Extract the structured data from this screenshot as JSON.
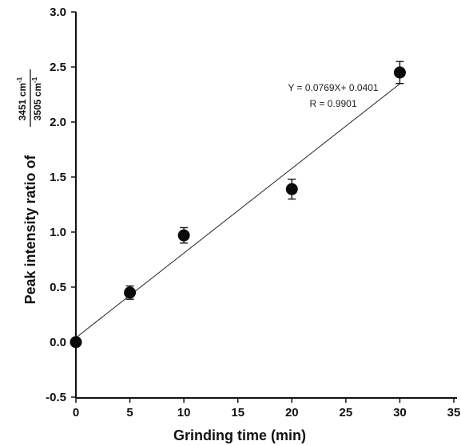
{
  "chart_data": {
    "type": "scatter",
    "xlabel": "Grinding time (min)",
    "ylabel": {
      "prefix": "Peak intensity ratio of",
      "numerator": "3451 cm",
      "denominator": "3505 cm",
      "unit_exponent": "-1"
    },
    "xlim": [
      -0.5,
      35
    ],
    "ylim": [
      -0.5,
      3.0
    ],
    "x_ticks": [
      0,
      5,
      10,
      15,
      20,
      25,
      30,
      35
    ],
    "x_tick_labels": [
      "0",
      "5",
      "10",
      "15",
      "20",
      "25",
      "30",
      "35"
    ],
    "y_ticks": [
      -0.5,
      0.0,
      0.5,
      1.0,
      1.5,
      2.0,
      2.5,
      3.0
    ],
    "y_tick_labels": [
      "-0.5",
      "0.0",
      "0.5",
      "1.0",
      "1.5",
      "2.0",
      "2.5",
      "3.0"
    ],
    "grid": false,
    "series": [
      {
        "x": [
          0,
          5,
          10,
          20,
          30
        ],
        "y": [
          0.0,
          0.45,
          0.97,
          1.39,
          2.45
        ],
        "y_error": [
          0.0,
          0.06,
          0.07,
          0.09,
          0.1
        ],
        "marker": "filled-circle"
      }
    ],
    "fit_line": {
      "slope": 0.0769,
      "intercept": 0.0401,
      "x_range": [
        0,
        30
      ]
    },
    "annotations": [
      "Y = 0.0769X+ 0.0401",
      "R = 0.9901"
    ]
  }
}
